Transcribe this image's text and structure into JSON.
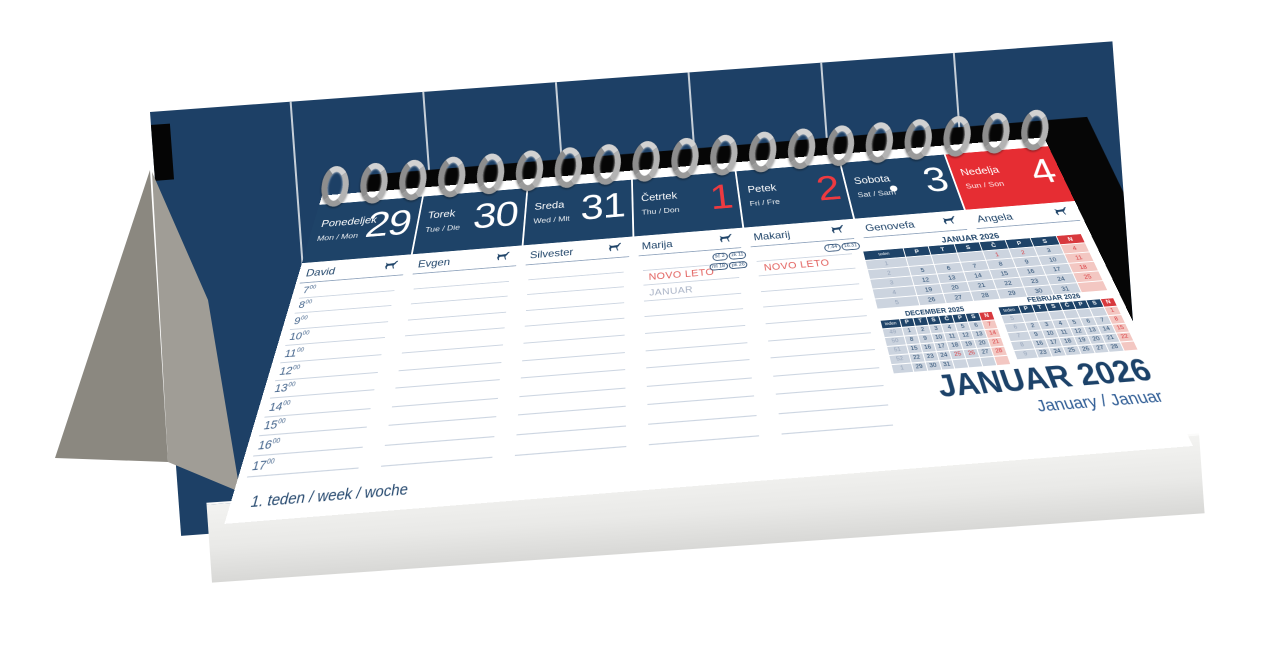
{
  "title": {
    "month": "JANUAR 2026",
    "subtitle": "January / Januar"
  },
  "footer": {
    "week_label": "1. teden / week / woche"
  },
  "days": [
    {
      "day": "Ponedeljek",
      "intl": "Mon / Mon",
      "date": "29",
      "name_day": "David"
    },
    {
      "day": "Torek",
      "intl": "Tue / Die",
      "date": "30",
      "name_day": "Evgen"
    },
    {
      "day": "Sreda",
      "intl": "Wed / Mit",
      "date": "31",
      "name_day": "Silvester"
    },
    {
      "day": "Četrtek",
      "intl": "Thu / Don",
      "date": "1",
      "red_date": true,
      "name_day": "Marija",
      "moon_badges": [
        "šč 3",
        "zk 11",
        "ml 18",
        "pk 26"
      ],
      "notes": [
        {
          "row": 1,
          "text": "NOVO LETO",
          "style": "red"
        },
        {
          "row": 2,
          "text": "JANUAR",
          "style": "gray"
        }
      ]
    },
    {
      "day": "Petek",
      "intl": "Fri / Fre",
      "date": "2",
      "red_date": true,
      "name_day": "Makarij",
      "sun_badges": [
        "7.44",
        "16.31"
      ],
      "notes": [
        {
          "row": 1,
          "text": "NOVO LETO",
          "style": "red"
        }
      ]
    },
    {
      "day": "Sobota",
      "intl": "Sat / Sam",
      "date": "3",
      "moon_dot": true,
      "name_day": "Genovefa",
      "no_lines": true
    },
    {
      "day": "Nedelja",
      "intl": "Sun / Son",
      "date": "4",
      "sunday": true,
      "name_day": "Angela",
      "no_lines": true
    }
  ],
  "time_slots": [
    "7",
    "8",
    "9",
    "10",
    "11",
    "12",
    "13",
    "14",
    "15",
    "16",
    "17"
  ],
  "time_sup": "00",
  "mini_calendars": [
    {
      "key": "januar-2026",
      "title": "JANUAR 2026",
      "headers": [
        "teden",
        "P",
        "T",
        "S",
        "Č",
        "P",
        "S",
        "N"
      ],
      "weeks": [
        {
          "num": "1",
          "days": [
            "",
            "",
            "",
            "1",
            "2",
            "3",
            "4"
          ]
        },
        {
          "num": "2",
          "days": [
            "5",
            "6",
            "7",
            "8",
            "9",
            "10",
            "11"
          ]
        },
        {
          "num": "3",
          "days": [
            "12",
            "13",
            "14",
            "15",
            "16",
            "17",
            "18"
          ]
        },
        {
          "num": "4",
          "days": [
            "19",
            "20",
            "21",
            "22",
            "23",
            "24",
            "25"
          ]
        },
        {
          "num": "5",
          "days": [
            "26",
            "27",
            "28",
            "29",
            "30",
            "31",
            ""
          ]
        }
      ],
      "red_days": [
        "1",
        "2",
        "4",
        "11",
        "18",
        "25"
      ]
    },
    {
      "key": "december-2025",
      "title": "DECEMBER 2025",
      "headers": [
        "teden",
        "P",
        "T",
        "S",
        "Č",
        "P",
        "S",
        "N"
      ],
      "weeks": [
        {
          "num": "49",
          "days": [
            "1",
            "2",
            "3",
            "4",
            "5",
            "6",
            "7"
          ]
        },
        {
          "num": "50",
          "days": [
            "8",
            "9",
            "10",
            "11",
            "12",
            "13",
            "14"
          ]
        },
        {
          "num": "51",
          "days": [
            "15",
            "16",
            "17",
            "18",
            "19",
            "20",
            "21"
          ]
        },
        {
          "num": "52",
          "days": [
            "22",
            "23",
            "24",
            "25",
            "26",
            "27",
            "28"
          ]
        },
        {
          "num": "1",
          "days": [
            "29",
            "30",
            "31",
            "",
            "",
            "",
            ""
          ]
        }
      ],
      "red_days": [
        "7",
        "14",
        "21",
        "25",
        "26",
        "28"
      ]
    },
    {
      "key": "februar-2026",
      "title": "FEBRUAR 2026",
      "headers": [
        "teden",
        "P",
        "T",
        "S",
        "Č",
        "P",
        "S",
        "N"
      ],
      "weeks": [
        {
          "num": "5",
          "days": [
            "",
            "",
            "",
            "",
            "",
            "",
            "1"
          ]
        },
        {
          "num": "6",
          "days": [
            "2",
            "3",
            "4",
            "5",
            "6",
            "7",
            "8"
          ]
        },
        {
          "num": "7",
          "days": [
            "9",
            "10",
            "11",
            "12",
            "13",
            "14",
            "15"
          ]
        },
        {
          "num": "8",
          "days": [
            "16",
            "17",
            "18",
            "19",
            "20",
            "21",
            "22"
          ]
        },
        {
          "num": "9",
          "days": [
            "23",
            "24",
            "25",
            "26",
            "27",
            "28",
            ""
          ]
        }
      ],
      "red_days": [
        "1",
        "8",
        "15",
        "22"
      ]
    }
  ],
  "colors": {
    "navy": "#1e4368",
    "panel_navy": "#1d4066",
    "red": "#e62d33",
    "sunday_pink": "#f3c7c2",
    "mini_cell": "#ccd4df",
    "rule_line": "#ccd5e1",
    "note_red": "#e2605d",
    "note_gray": "#a8b2c5"
  }
}
